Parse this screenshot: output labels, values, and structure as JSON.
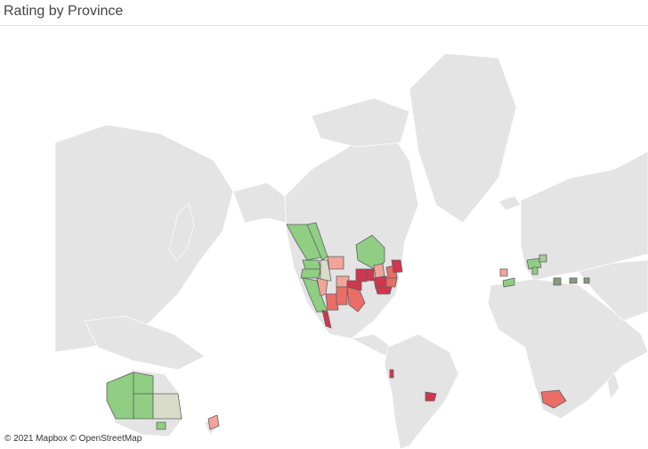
{
  "header": {
    "title": "Rating by Province"
  },
  "attribution": "© 2021 Mapbox © OpenStreetMap",
  "map": {
    "basemap_land_color": "#e4e4e4",
    "basemap_border_color": "#ffffff",
    "water_color": "#ffffff",
    "rating_colors": {
      "high": "#8fce83",
      "neutral": "#d8dcc8",
      "low": "#f4a39a",
      "lower": "#ea6d66",
      "lowest": "#d0364e"
    }
  }
}
